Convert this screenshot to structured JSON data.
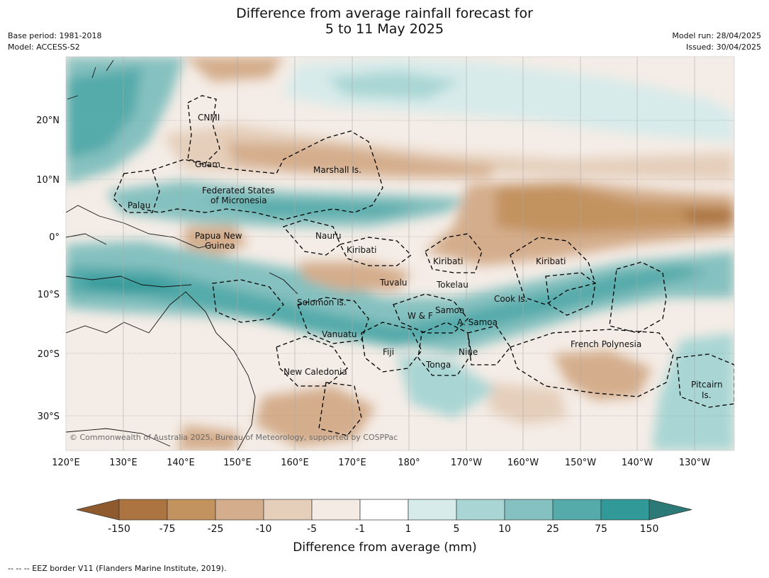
{
  "title": {
    "line1": "Difference from average rainfall forecast for",
    "line2": "5 to 11 May 2025"
  },
  "meta": {
    "base_period": "Base period: 1981-2018",
    "model": "Model: ACCESS-S2",
    "model_run": "Model run: 28/04/2025",
    "issued": "Issued: 30/04/2025"
  },
  "map": {
    "lon_ticks": [
      "120°E",
      "130°E",
      "140°E",
      "150°E",
      "160°E",
      "170°E",
      "180°",
      "170°W",
      "160°W",
      "150°W",
      "140°W",
      "130°W"
    ],
    "lat_ticks": [
      "20°N",
      "10°N",
      "0°",
      "10°S",
      "20°S",
      "30°S"
    ],
    "places": [
      "CNMI",
      "Guam",
      "Marshall Is.",
      "Federated States",
      "of Micronesia",
      "Palau",
      "Papua New",
      "Guinea",
      "Nauru",
      "Kiribati",
      "Kiribati",
      "Kiribati",
      "Tuvalu",
      "Tokelau",
      "Solomon Is.",
      "Cook Is.",
      "W & F",
      "Samoa",
      "A. Samoa",
      "Vanuatu",
      "Fiji",
      "Niue",
      "French Polynesia",
      "Tonga",
      "New Caledonia",
      "Pitcairn",
      "Is."
    ],
    "copyright": "© Commonwealth of Australia 2025, Bureau of Meteorology, supported by COSPPac"
  },
  "colorbar": {
    "title": "Difference from average (mm)",
    "ticks": [
      "-150",
      "-75",
      "-25",
      "-10",
      "-5",
      "-1",
      "1",
      "5",
      "10",
      "25",
      "75",
      "150"
    ],
    "colors": [
      "#8f5a2d",
      "#ab7440",
      "#c2925f",
      "#d4ad8c",
      "#e5cfbb",
      "#f3ebe4",
      "#ffffff",
      "#d7ebea",
      "#a9d6d4",
      "#85c1c0",
      "#55aaaa",
      "#329999",
      "#2c7a78"
    ]
  },
  "footnote": "-- -- -- EEZ border V11 (Flanders Marine Institute, 2019)."
}
